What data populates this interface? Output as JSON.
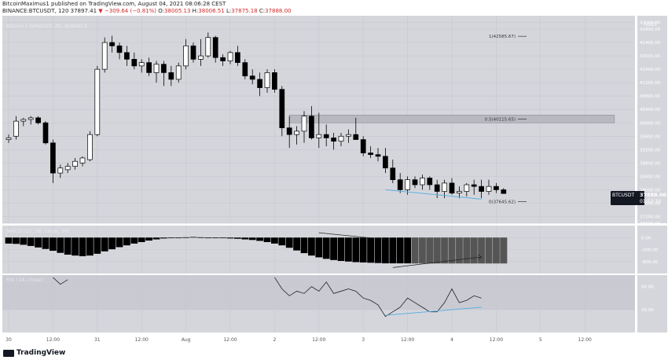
{
  "header": {
    "line1": "BitcoinMaximus1 published on TradingView.com, August 04, 2021 08:06:28 CEST",
    "symbol_line": "BINANCE:BTCUSDT, 120",
    "price": "37897.41",
    "change": "▼ −309.64 (−0.81%)",
    "o_label": "O:",
    "o": "38005.13",
    "h_label": "H:",
    "h": "38006.51",
    "l_label": "L:",
    "l": "37875.18",
    "c_label": "C:",
    "c": "37888.00"
  },
  "pane_labels": {
    "main": "Bitcoin / TetherUS, 2h, BINANCE",
    "macd": "MACD (12, 26, close, 26)",
    "rsi": "RSI (14, close)"
  },
  "colors": {
    "background": "#ffffff",
    "pane": "#d5d6dc",
    "rsi_band": "#c9cad2",
    "grid": "#c7c8cf",
    "candle_body": "#000000",
    "trendline": "#5fb0e0",
    "fib_box": "#b8b9c0",
    "price_tag": "#131722"
  },
  "price_label": {
    "value": "37888.00",
    "symbol": "BTCUSDT",
    "countdown": "01:53:33"
  },
  "axis_unit": "USDT",
  "footer": {
    "brand": "TradingView"
  },
  "chart_data": [
    {
      "type": "candlestick",
      "title": "Bitcoin / TetherUS, 2h, BINANCE",
      "ylim": [
        37000,
        43200
      ],
      "y_ticks": [
        43000,
        42800,
        42400,
        42000,
        41600,
        41200,
        40800,
        40400,
        40000,
        39600,
        39200,
        38800,
        38400,
        38000,
        37600,
        37200,
        37000
      ],
      "y_tick_labels": [
        "43000.00",
        "42800.00",
        "42400.00",
        "42000.00",
        "41600.00",
        "41200.00",
        "40800.00",
        "40400.00",
        "40000.00",
        "39600.00",
        "39200.00",
        "38800.00",
        "38400.00",
        "38000.00",
        "37600.00",
        "37200.00",
        "37000.00"
      ],
      "x_ticks": [
        {
          "i": 0,
          "label": "30"
        },
        {
          "i": 6,
          "label": "12:00"
        },
        {
          "i": 12,
          "label": "31"
        },
        {
          "i": 18,
          "label": "12:00"
        },
        {
          "i": 24,
          "label": "Aug"
        },
        {
          "i": 30,
          "label": "12:00"
        },
        {
          "i": 36,
          "label": "2"
        },
        {
          "i": 42,
          "label": "12:00"
        },
        {
          "i": 48,
          "label": "3"
        },
        {
          "i": 54,
          "label": "12:00"
        },
        {
          "i": 60,
          "label": "4"
        },
        {
          "i": 66,
          "label": "12:00"
        },
        {
          "i": 72,
          "label": "5"
        },
        {
          "i": 78,
          "label": "12:00"
        }
      ],
      "candles": [
        [
          39500,
          39650,
          39400,
          39550
        ],
        [
          39600,
          40200,
          39500,
          40050
        ],
        [
          40050,
          40150,
          39900,
          40100
        ],
        [
          40100,
          40200,
          39950,
          40150
        ],
        [
          40150,
          40200,
          39950,
          40000
        ],
        [
          40000,
          40050,
          39350,
          39400
        ],
        [
          39400,
          39500,
          38200,
          38500
        ],
        [
          38500,
          38750,
          38350,
          38650
        ],
        [
          38600,
          38800,
          38500,
          38700
        ],
        [
          38700,
          38950,
          38600,
          38850
        ],
        [
          38800,
          39000,
          38700,
          38950
        ],
        [
          38900,
          39750,
          38850,
          39650
        ],
        [
          39650,
          41700,
          39600,
          41600
        ],
        [
          41600,
          42550,
          41500,
          42400
        ],
        [
          42400,
          42600,
          42100,
          42300
        ],
        [
          42300,
          42400,
          41900,
          42100
        ],
        [
          42100,
          42300,
          41700,
          41900
        ],
        [
          41900,
          42100,
          41600,
          41700
        ],
        [
          41700,
          41900,
          41500,
          41800
        ],
        [
          41800,
          41950,
          41400,
          41500
        ],
        [
          41500,
          41850,
          41200,
          41750
        ],
        [
          41750,
          41850,
          41100,
          41500
        ],
        [
          41500,
          41700,
          41100,
          41300
        ],
        [
          41300,
          41800,
          41200,
          41700
        ],
        [
          41700,
          42500,
          41600,
          42300
        ],
        [
          42300,
          42400,
          41800,
          41900
        ],
        [
          41900,
          42500,
          41700,
          42000
        ],
        [
          42000,
          42700,
          41950,
          42550
        ],
        [
          42550,
          42600,
          41800,
          41950
        ],
        [
          41950,
          42050,
          41700,
          41850
        ],
        [
          41850,
          42150,
          41750,
          42100
        ],
        [
          42100,
          42300,
          41700,
          41800
        ],
        [
          41800,
          41900,
          41300,
          41400
        ],
        [
          41400,
          41600,
          41150,
          41300
        ],
        [
          41300,
          41500,
          40800,
          41050
        ],
        [
          41050,
          41600,
          40900,
          41500
        ],
        [
          41500,
          41600,
          40900,
          41000
        ],
        [
          41000,
          41100,
          39600,
          39850
        ],
        [
          39850,
          40200,
          39250,
          39650
        ],
        [
          39650,
          39900,
          39350,
          39750
        ],
        [
          39750,
          40350,
          39400,
          40200
        ],
        [
          40200,
          40500,
          39500,
          39550
        ],
        [
          39550,
          40300,
          39250,
          39650
        ],
        [
          39650,
          39950,
          39300,
          39550
        ],
        [
          39550,
          39700,
          39200,
          39450
        ],
        [
          39450,
          39700,
          39300,
          39600
        ],
        [
          39600,
          39800,
          39400,
          39650
        ],
        [
          39650,
          40150,
          39500,
          39500
        ],
        [
          39500,
          39600,
          39000,
          39100
        ],
        [
          39100,
          39300,
          38950,
          39050
        ],
        [
          39050,
          39250,
          38850,
          39000
        ],
        [
          39000,
          39250,
          38500,
          38650
        ],
        [
          38650,
          38900,
          38200,
          38300
        ],
        [
          38300,
          38500,
          37900,
          38000
        ],
        [
          38000,
          38400,
          37850,
          38300
        ],
        [
          38300,
          38400,
          38050,
          38150
        ],
        [
          38150,
          38450,
          38000,
          38350
        ],
        [
          38350,
          38400,
          38000,
          38150
        ],
        [
          38150,
          38300,
          37750,
          37950
        ],
        [
          37950,
          38300,
          37750,
          38200
        ],
        [
          38200,
          38350,
          37850,
          37900
        ],
        [
          37900,
          38100,
          37750,
          37950
        ],
        [
          37950,
          38200,
          37800,
          38150
        ],
        [
          38150,
          38300,
          37850,
          38100
        ],
        [
          38100,
          38300,
          37750,
          37950
        ],
        [
          37950,
          38300,
          37850,
          38100
        ],
        [
          38100,
          38200,
          37900,
          38000
        ],
        [
          38000,
          38050,
          37880,
          37888
        ]
      ],
      "annotations": [
        {
          "label": "1(42585.67)",
          "value": 42585.67
        },
        {
          "label": "0.5(40115.65)",
          "value": 40115.65
        },
        {
          "label": "0(37645.62)",
          "value": 37645.62
        }
      ],
      "fib_zone": {
        "x_start": 38,
        "x_end": 82,
        "y_low": 40000,
        "y_high": 40230
      },
      "trendline": {
        "x1": 51,
        "y1": 38000,
        "x2": 64,
        "y2": 37720
      }
    },
    {
      "type": "bar",
      "title": "MACD (12, 26, close, 26)",
      "ylim": [
        -1200,
        400
      ],
      "y_ticks": [
        0,
        -400,
        -800
      ],
      "y_tick_labels": [
        "0.00",
        "-400.00",
        "-800.00"
      ],
      "values": [
        -200,
        -210,
        -240,
        -280,
        -330,
        -380,
        -440,
        -510,
        -570,
        -600,
        -620,
        -600,
        -540,
        -460,
        -390,
        -320,
        -260,
        -200,
        -150,
        -100,
        -60,
        -30,
        -10,
        0,
        10,
        20,
        10,
        0,
        -10,
        -20,
        -30,
        -40,
        -60,
        -80,
        -110,
        -150,
        -200,
        -260,
        -340,
        -430,
        -520,
        -600,
        -660,
        -710,
        -750,
        -780,
        -800,
        -820,
        -830,
        -840,
        -850,
        -860,
        -860,
        -860,
        -860,
        -860,
        -860,
        -860,
        -860,
        -860,
        -860,
        -860,
        -860,
        -860,
        -860,
        -860,
        -860,
        -860
      ],
      "signal_line": [
        {
          "x": 42,
          "y": 160
        },
        {
          "x": 51,
          "y": -60
        }
      ],
      "divergence_line": [
        {
          "x": 52,
          "y": -1000
        },
        {
          "x": 64,
          "y": -650
        }
      ]
    },
    {
      "type": "line",
      "title": "RSI (14, close)",
      "ylim": [
        20,
        45
      ],
      "y_ticks": [
        40,
        30
      ],
      "y_tick_labels": [
        "40.00",
        "30.00"
      ],
      "band": [
        30,
        70
      ],
      "values": [
        {
          "x": 6,
          "y": 44
        },
        {
          "x": 7,
          "y": 41
        },
        {
          "x": 8,
          "y": 43
        },
        {
          "x": 36,
          "y": 44
        },
        {
          "x": 37,
          "y": 39
        },
        {
          "x": 38,
          "y": 36
        },
        {
          "x": 39,
          "y": 38
        },
        {
          "x": 40,
          "y": 37
        },
        {
          "x": 41,
          "y": 40
        },
        {
          "x": 42,
          "y": 38
        },
        {
          "x": 43,
          "y": 42
        },
        {
          "x": 44,
          "y": 37
        },
        {
          "x": 45,
          "y": 38
        },
        {
          "x": 46,
          "y": 39
        },
        {
          "x": 47,
          "y": 38
        },
        {
          "x": 48,
          "y": 35
        },
        {
          "x": 49,
          "y": 34
        },
        {
          "x": 50,
          "y": 32
        },
        {
          "x": 51,
          "y": 27
        },
        {
          "x": 52,
          "y": 29
        },
        {
          "x": 53,
          "y": 31
        },
        {
          "x": 54,
          "y": 35
        },
        {
          "x": 55,
          "y": 33
        },
        {
          "x": 56,
          "y": 31
        },
        {
          "x": 57,
          "y": 29
        },
        {
          "x": 58,
          "y": 29
        },
        {
          "x": 59,
          "y": 33
        },
        {
          "x": 60,
          "y": 39
        },
        {
          "x": 61,
          "y": 33
        },
        {
          "x": 62,
          "y": 34
        },
        {
          "x": 63,
          "y": 36
        },
        {
          "x": 64,
          "y": 35
        }
      ],
      "trendline": {
        "x1": 51,
        "y1": 27.5,
        "x2": 64,
        "y2": 31
      }
    }
  ]
}
